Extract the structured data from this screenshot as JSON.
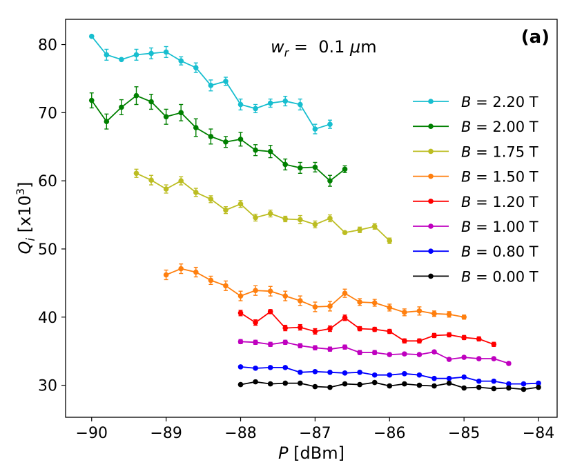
{
  "chart_data": {
    "type": "line",
    "panel_label": "(a)",
    "annotation": {
      "var": "w",
      "sub": "r",
      "text": " =  0.1 ",
      "mu": "μ",
      "unit": "m"
    },
    "xlabel": {
      "var": "P",
      "unit": " [dBm]"
    },
    "ylabel": {
      "var": "Q",
      "sub": "i",
      "pre": " [x10",
      "sup": "3",
      "post": "]"
    },
    "xlim": [
      -90.35,
      -83.75
    ],
    "ylim": [
      25.3,
      83.7
    ],
    "xticks": [
      -90,
      -89,
      -88,
      -87,
      -86,
      -85,
      -84
    ],
    "xtick_labels": [
      "−90",
      "−89",
      "−88",
      "−87",
      "−86",
      "−85",
      "−84"
    ],
    "yticks": [
      30,
      40,
      50,
      60,
      70,
      80
    ],
    "ytick_labels": [
      "30",
      "40",
      "50",
      "60",
      "70",
      "80"
    ],
    "grid": false,
    "legend_position": "right",
    "series": [
      {
        "name": "B = 2.20 T",
        "label_var": "B",
        "label_rest": " = 2.20 T",
        "color": "#17becf",
        "x": [
          -90.0,
          -89.8,
          -89.6,
          -89.4,
          -89.2,
          -89.0,
          -88.8,
          -88.6,
          -88.4,
          -88.2,
          -88.0,
          -87.8,
          -87.6,
          -87.4,
          -87.2,
          -87.0,
          -86.8
        ],
        "y": [
          81.2,
          78.5,
          77.8,
          78.5,
          78.7,
          78.9,
          77.6,
          76.6,
          74.0,
          74.6,
          71.2,
          70.6,
          71.4,
          71.7,
          71.2,
          67.6,
          68.3
        ],
        "err": [
          0,
          0.8,
          0,
          0.8,
          0.8,
          0.8,
          0.6,
          0.7,
          0.8,
          0.6,
          0.8,
          0.6,
          0.6,
          0.7,
          0.8,
          0.7,
          0.6
        ]
      },
      {
        "name": "B = 2.00 T",
        "label_var": "B",
        "label_rest": " = 2.00 T",
        "color": "#008000",
        "x": [
          -90.0,
          -89.8,
          -89.6,
          -89.4,
          -89.2,
          -89.0,
          -88.8,
          -88.6,
          -88.4,
          -88.2,
          -88.0,
          -87.8,
          -87.6,
          -87.4,
          -87.2,
          -87.0,
          -86.8,
          -86.6
        ],
        "y": [
          71.8,
          68.7,
          70.8,
          72.5,
          71.6,
          69.4,
          70.0,
          67.8,
          66.5,
          65.7,
          66.1,
          64.5,
          64.3,
          62.4,
          61.9,
          62.0,
          60.0,
          61.7
        ],
        "err": [
          1.1,
          1.1,
          1.1,
          1.3,
          1.1,
          1.1,
          1.2,
          1.3,
          1.1,
          0.8,
          1.0,
          0.8,
          0.9,
          0.8,
          0.8,
          0.7,
          0.8,
          0.5
        ]
      },
      {
        "name": "B = 1.75 T",
        "label_var": "B",
        "label_rest": " = 1.75 T",
        "color": "#bcbd22",
        "x": [
          -89.4,
          -89.2,
          -89.0,
          -88.8,
          -88.6,
          -88.4,
          -88.2,
          -88.0,
          -87.8,
          -87.6,
          -87.4,
          -87.2,
          -87.0,
          -86.8,
          -86.6,
          -86.4,
          -86.2,
          -86.0
        ],
        "y": [
          61.1,
          60.1,
          58.8,
          60.0,
          58.3,
          57.3,
          55.7,
          56.6,
          54.6,
          55.2,
          54.4,
          54.3,
          53.6,
          54.5,
          52.4,
          52.8,
          53.3,
          51.2
        ],
        "err": [
          0.6,
          0.7,
          0.6,
          0.6,
          0.6,
          0.5,
          0.5,
          0.5,
          0.5,
          0.5,
          0.4,
          0.6,
          0.5,
          0.5,
          0,
          0.4,
          0.4,
          0.4
        ]
      },
      {
        "name": "B = 1.50 T",
        "label_var": "B",
        "label_rest": " = 1.50 T",
        "color": "#ff7f0e",
        "x": [
          -89.0,
          -88.8,
          -88.6,
          -88.4,
          -88.2,
          -88.0,
          -87.8,
          -87.6,
          -87.4,
          -87.2,
          -87.0,
          -86.8,
          -86.6,
          -86.4,
          -86.2,
          -86.0,
          -85.8,
          -85.6,
          -85.4,
          -85.2,
          -85.0
        ],
        "y": [
          46.2,
          47.1,
          46.6,
          45.4,
          44.6,
          43.1,
          43.9,
          43.8,
          43.1,
          42.4,
          41.5,
          41.6,
          43.5,
          42.2,
          42.1,
          41.4,
          40.7,
          40.9,
          40.5,
          40.4,
          40.0
        ],
        "err": [
          0.7,
          0.7,
          0.7,
          0.6,
          0.7,
          0.7,
          0.7,
          0.7,
          0.7,
          0.7,
          0.7,
          0.7,
          0.6,
          0.5,
          0.5,
          0.5,
          0.5,
          0.6,
          0.4,
          0.4,
          0.3
        ]
      },
      {
        "name": "B = 1.20 T",
        "label_var": "B",
        "label_rest": " = 1.20 T",
        "color": "#ff0000",
        "x": [
          -88.0,
          -87.8,
          -87.6,
          -87.4,
          -87.2,
          -87.0,
          -86.8,
          -86.6,
          -86.4,
          -86.2,
          -86.0,
          -85.8,
          -85.6,
          -85.4,
          -85.2,
          -85.0,
          -84.8,
          -84.6
        ],
        "y": [
          40.6,
          39.2,
          40.8,
          38.4,
          38.5,
          37.9,
          38.3,
          39.9,
          38.3,
          38.2,
          37.9,
          36.5,
          36.5,
          37.3,
          37.4,
          37.0,
          36.8,
          36.0
        ],
        "err": [
          0.4,
          0.4,
          0.3,
          0.4,
          0.4,
          0.4,
          0.4,
          0.4,
          0.3,
          0.3,
          0.3,
          0.3,
          0.3,
          0.3,
          0.3,
          0.3,
          0.3,
          0.3
        ]
      },
      {
        "name": "B = 1.00 T",
        "label_var": "B",
        "label_rest": " = 1.00 T",
        "color": "#bf00bf",
        "x": [
          -88.0,
          -87.8,
          -87.6,
          -87.4,
          -87.2,
          -87.0,
          -86.8,
          -86.6,
          -86.4,
          -86.2,
          -86.0,
          -85.8,
          -85.6,
          -85.4,
          -85.2,
          -85.0,
          -84.8,
          -84.6,
          -84.4
        ],
        "y": [
          36.4,
          36.3,
          36.0,
          36.3,
          35.8,
          35.5,
          35.3,
          35.6,
          34.8,
          34.8,
          34.5,
          34.6,
          34.5,
          34.9,
          33.8,
          34.1,
          33.9,
          33.9,
          33.2
        ],
        "err": [
          0.3,
          0.3,
          0.3,
          0.3,
          0.3,
          0.3,
          0.3,
          0.3,
          0.3,
          0.3,
          0.2,
          0.2,
          0.2,
          0.2,
          0.2,
          0.2,
          0.2,
          0.2,
          0.2
        ]
      },
      {
        "name": "B = 0.80 T",
        "label_var": "B",
        "label_rest": " = 0.80 T",
        "color": "#0000ff",
        "x": [
          -88.0,
          -87.8,
          -87.6,
          -87.4,
          -87.2,
          -87.0,
          -86.8,
          -86.6,
          -86.4,
          -86.2,
          -86.0,
          -85.8,
          -85.6,
          -85.4,
          -85.2,
          -85.0,
          -84.8,
          -84.6,
          -84.4,
          -84.2,
          -84.0
        ],
        "y": [
          32.7,
          32.5,
          32.6,
          32.6,
          31.9,
          32.0,
          31.9,
          31.8,
          31.9,
          31.5,
          31.5,
          31.7,
          31.5,
          31.0,
          31.0,
          31.2,
          30.6,
          30.6,
          30.2,
          30.2,
          30.3
        ],
        "err": [
          0.2,
          0.2,
          0.2,
          0.2,
          0.2,
          0.2,
          0.2,
          0.2,
          0.2,
          0.2,
          0.2,
          0.2,
          0.2,
          0.2,
          0.2,
          0.2,
          0.2,
          0.2,
          0.2,
          0.2,
          0.2
        ]
      },
      {
        "name": "B = 0.00 T",
        "label_var": "B",
        "label_rest": " = 0.00 T",
        "color": "#000000",
        "x": [
          -88.0,
          -87.8,
          -87.6,
          -87.4,
          -87.2,
          -87.0,
          -86.8,
          -86.6,
          -86.4,
          -86.2,
          -86.0,
          -85.8,
          -85.6,
          -85.4,
          -85.2,
          -85.0,
          -84.8,
          -84.6,
          -84.4,
          -84.2,
          -84.0
        ],
        "y": [
          30.1,
          30.5,
          30.2,
          30.3,
          30.3,
          29.8,
          29.7,
          30.2,
          30.1,
          30.4,
          29.9,
          30.2,
          30.0,
          29.9,
          30.3,
          29.6,
          29.7,
          29.5,
          29.6,
          29.4,
          29.7
        ],
        "err": [
          0.2,
          0.2,
          0.2,
          0.2,
          0.2,
          0.2,
          0.2,
          0.2,
          0.2,
          0.2,
          0.2,
          0.2,
          0.2,
          0.2,
          0.2,
          0.2,
          0.2,
          0.2,
          0.2,
          0.2,
          0.2
        ]
      }
    ]
  }
}
